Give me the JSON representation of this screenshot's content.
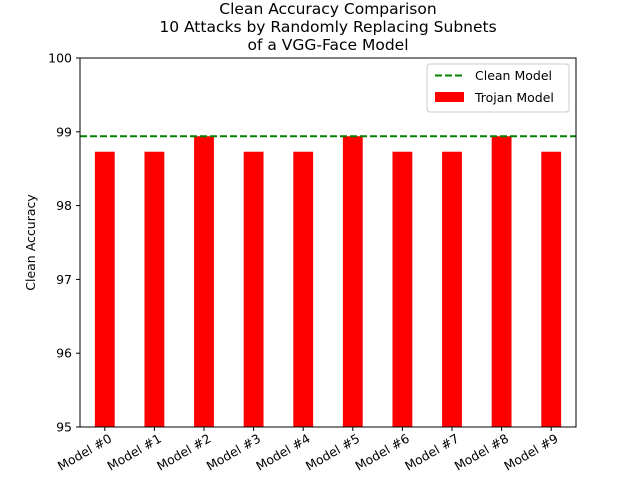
{
  "chart_data": {
    "type": "bar",
    "title_lines": [
      "Clean Accuracy Comparison",
      "10 Attacks by Randomly Replacing Subnets",
      "of a VGG-Face Model"
    ],
    "xlabel": "",
    "ylabel": "Clean Accuracy",
    "ylim": [
      95,
      100
    ],
    "yticks": [
      "95",
      "96",
      "97",
      "98",
      "99",
      "100"
    ],
    "categories": [
      "Model #0",
      "Model #1",
      "Model #2",
      "Model #3",
      "Model #4",
      "Model #5",
      "Model #6",
      "Model #7",
      "Model #8",
      "Model #9"
    ],
    "series": [
      {
        "name": "Trojan Model",
        "color": "#ff0000",
        "values": [
          98.73,
          98.73,
          98.94,
          98.73,
          98.73,
          98.94,
          98.73,
          98.73,
          98.94,
          98.73
        ]
      }
    ],
    "reference_line": {
      "name": "Clean Model",
      "value": 98.94,
      "color": "#008000",
      "style": "dashed"
    },
    "legend_position": "top-right",
    "grid": false
  }
}
